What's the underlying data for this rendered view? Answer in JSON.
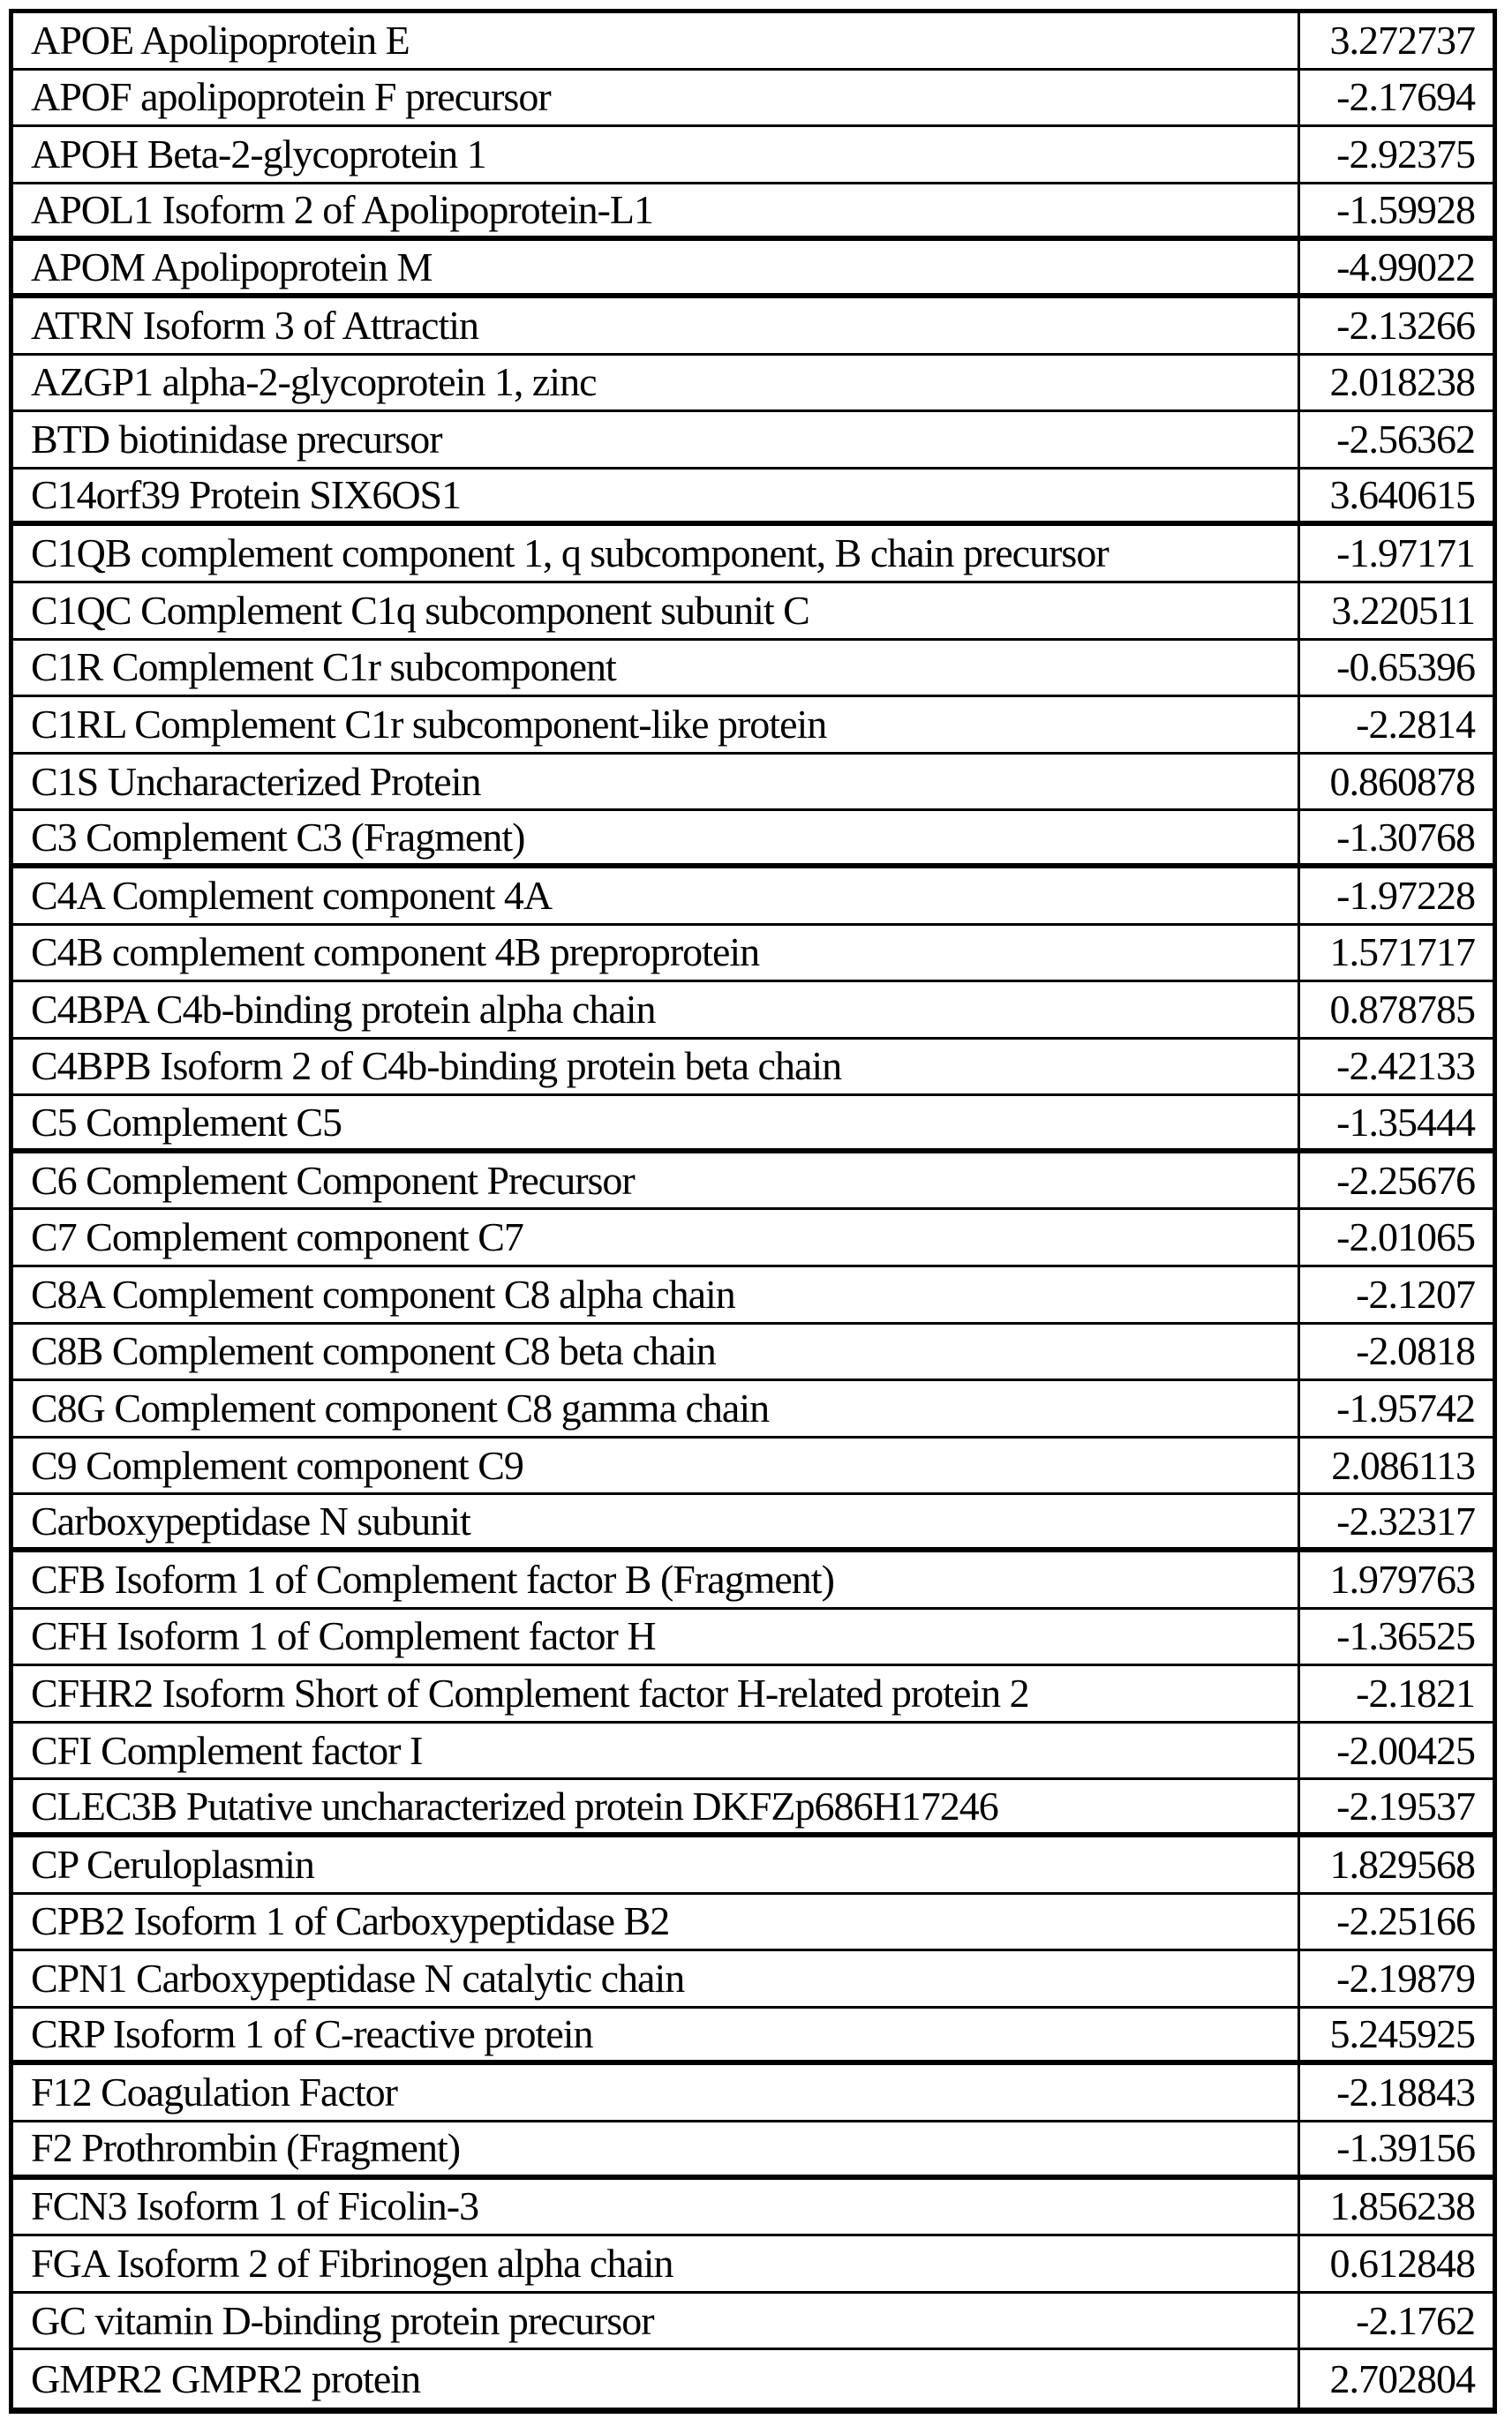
{
  "table": {
    "rows": [
      {
        "name": "APOE Apolipoprotein E",
        "value": "3.272737"
      },
      {
        "name": "APOF apolipoprotein F precursor",
        "value": "-2.17694"
      },
      {
        "name": "APOH Beta-2-glycoprotein 1",
        "value": "-2.92375"
      },
      {
        "name": "APOL1 Isoform 2 of Apolipoprotein-L1",
        "value": "-1.59928"
      },
      {
        "name": "APOM Apolipoprotein M",
        "value": "-4.99022"
      },
      {
        "name": "ATRN Isoform 3 of Attractin",
        "value": "-2.13266"
      },
      {
        "name": "AZGP1 alpha-2-glycoprotein 1, zinc",
        "value": "2.018238"
      },
      {
        "name": "BTD biotinidase precursor",
        "value": "-2.56362"
      },
      {
        "name": "C14orf39 Protein SIX6OS1",
        "value": "3.640615"
      },
      {
        "name": "C1QB complement component 1, q subcomponent, B chain precursor",
        "value": "-1.97171"
      },
      {
        "name": "C1QC Complement C1q subcomponent subunit C",
        "value": "3.220511"
      },
      {
        "name": "C1R Complement C1r subcomponent",
        "value": "-0.65396"
      },
      {
        "name": "C1RL Complement C1r subcomponent-like protein",
        "value": "-2.2814"
      },
      {
        "name": "C1S Uncharacterized Protein",
        "value": "0.860878"
      },
      {
        "name": "C3 Complement C3 (Fragment)",
        "value": "-1.30768"
      },
      {
        "name": "C4A Complement component 4A",
        "value": "-1.97228"
      },
      {
        "name": "C4B complement component 4B preproprotein",
        "value": "1.571717"
      },
      {
        "name": "C4BPA C4b-binding protein alpha chain",
        "value": "0.878785"
      },
      {
        "name": "C4BPB Isoform 2 of C4b-binding protein beta chain",
        "value": "-2.42133"
      },
      {
        "name": "C5 Complement C5",
        "value": "-1.35444"
      },
      {
        "name": "C6 Complement Component Precursor",
        "value": "-2.25676"
      },
      {
        "name": "C7 Complement component C7",
        "value": "-2.01065"
      },
      {
        "name": "C8A Complement component C8 alpha chain",
        "value": "-2.1207"
      },
      {
        "name": "C8B Complement component C8 beta chain",
        "value": "-2.0818"
      },
      {
        "name": "C8G Complement component C8 gamma chain",
        "value": "-1.95742"
      },
      {
        "name": "C9 Complement component C9",
        "value": "2.086113"
      },
      {
        "name": "Carboxypeptidase N subunit",
        "value": "-2.32317"
      },
      {
        "name": "CFB Isoform 1 of Complement factor B (Fragment)",
        "value": "1.979763"
      },
      {
        "name": "CFH Isoform 1 of Complement factor H",
        "value": "-1.36525"
      },
      {
        "name": "CFHR2 Isoform Short of Complement factor H-related protein 2",
        "value": "-2.1821"
      },
      {
        "name": "CFI Complement factor I",
        "value": "-2.00425"
      },
      {
        "name": "CLEC3B Putative uncharacterized protein DKFZp686H17246",
        "value": "-2.19537"
      },
      {
        "name": "CP Ceruloplasmin",
        "value": "1.829568"
      },
      {
        "name": "CPB2 Isoform 1 of Carboxypeptidase B2",
        "value": "-2.25166"
      },
      {
        "name": "CPN1 Carboxypeptidase N catalytic chain",
        "value": "-2.19879"
      },
      {
        "name": "CRP Isoform 1 of C-reactive protein",
        "value": "5.245925"
      },
      {
        "name": "F12 Coagulation Factor",
        "value": "-2.18843"
      },
      {
        "name": "F2 Prothrombin (Fragment)",
        "value": "-1.39156"
      },
      {
        "name": "FCN3 Isoform 1 of Ficolin-3",
        "value": "1.856238"
      },
      {
        "name": "FGA Isoform 2 of Fibrinogen alpha chain",
        "value": "0.612848"
      },
      {
        "name": "GC vitamin D-binding protein precursor",
        "value": "-2.1762"
      },
      {
        "name": "GMPR2 GMPR2 protein",
        "value": "2.702804"
      }
    ]
  }
}
